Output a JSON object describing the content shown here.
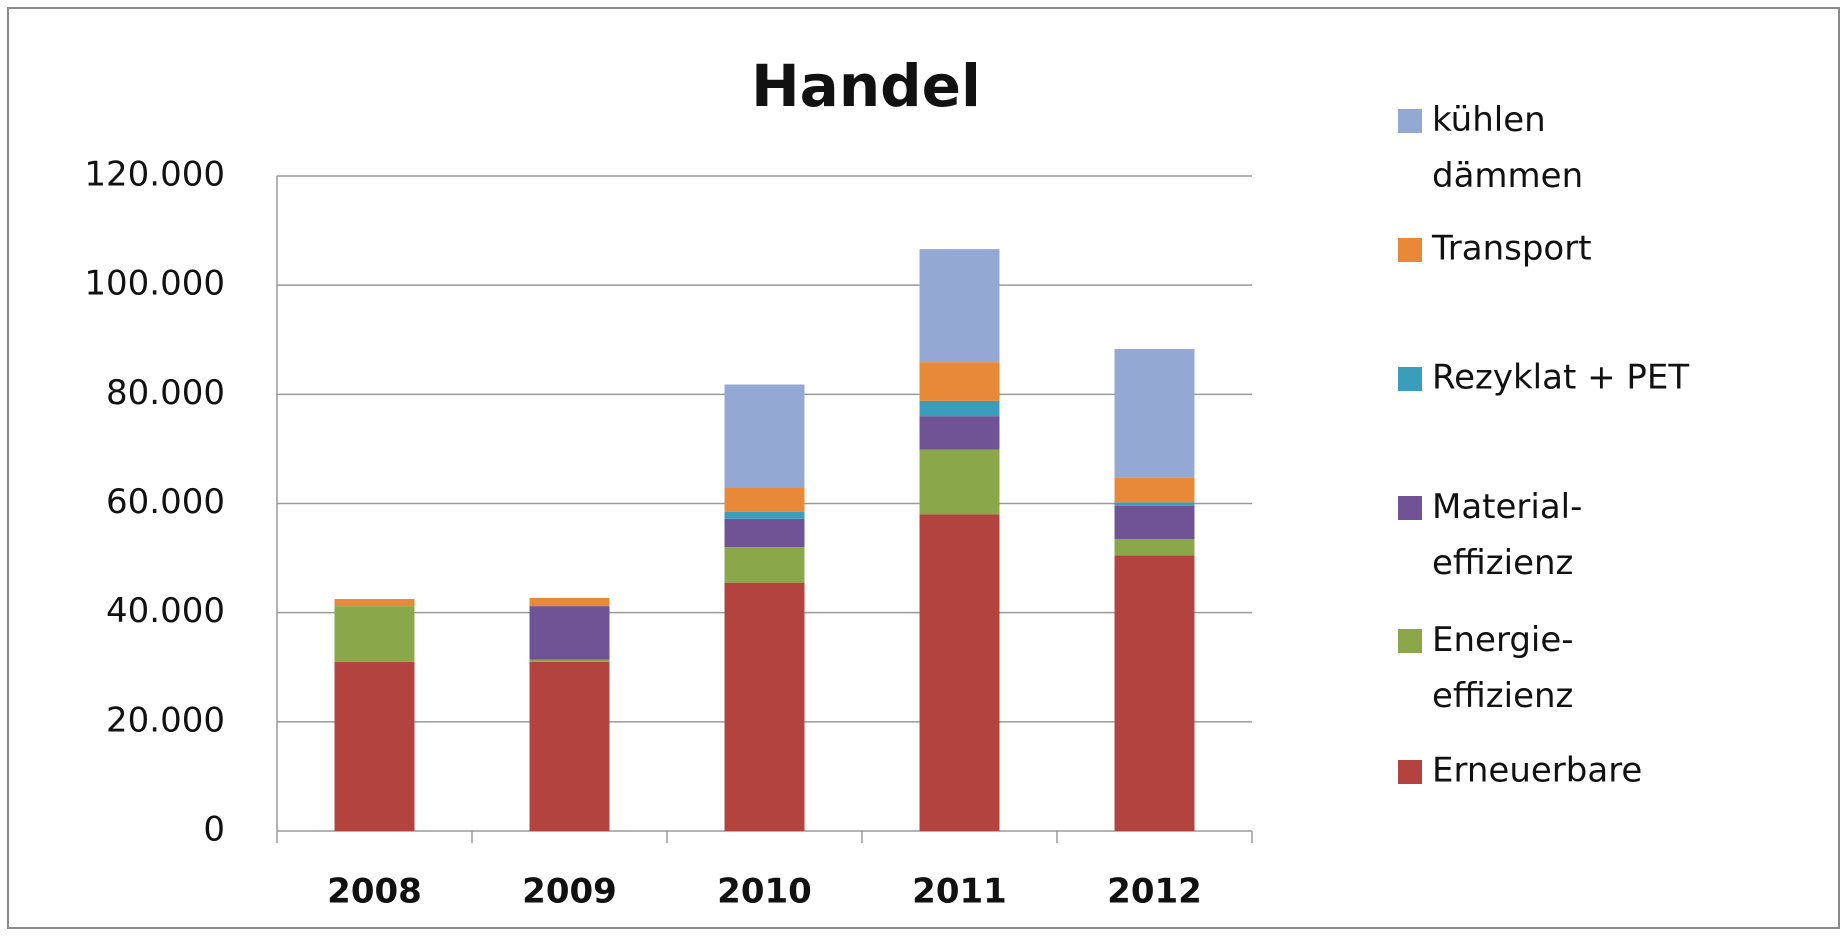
{
  "chart_data": {
    "type": "stacked-bar",
    "title": "Handel",
    "categories": [
      "2008",
      "2009",
      "2010",
      "2011",
      "2012"
    ],
    "series": [
      {
        "name": "Erneuerbare",
        "color": "#b3433f",
        "values": [
          31000,
          31000,
          45500,
          58000,
          50500
        ]
      },
      {
        "name": "Energie-\neffizienz",
        "color": "#8aa84a",
        "values": [
          10200,
          400,
          6500,
          11900,
          3000
        ]
      },
      {
        "name": "Material-\neffizienz",
        "color": "#6f5395",
        "values": [
          0,
          9800,
          5200,
          6100,
          6100
        ]
      },
      {
        "name": "Rezyklat + PET",
        "color": "#3a9dbb",
        "values": [
          0,
          0,
          1300,
          2800,
          600
        ]
      },
      {
        "name": "Transport",
        "color": "#e8893a",
        "values": [
          1300,
          1500,
          4500,
          7100,
          4600
        ]
      },
      {
        "name": "kühlen\ndämmen",
        "color": "#93a9d4",
        "values": [
          0,
          0,
          18800,
          20700,
          23500
        ]
      }
    ],
    "ylim": [
      0,
      120000
    ],
    "yticks": [
      0,
      {
        "value": 20000,
        "label": "20.000"
      },
      {
        "value": 40000,
        "label": "40.000"
      },
      {
        "value": 60000,
        "label": "60.000"
      },
      {
        "value": 80000,
        "label": "80.000"
      },
      {
        "value": 100000,
        "label": "100.000"
      },
      {
        "value": 120000,
        "label": "120.000"
      }
    ],
    "grid": true,
    "legend": "right"
  }
}
